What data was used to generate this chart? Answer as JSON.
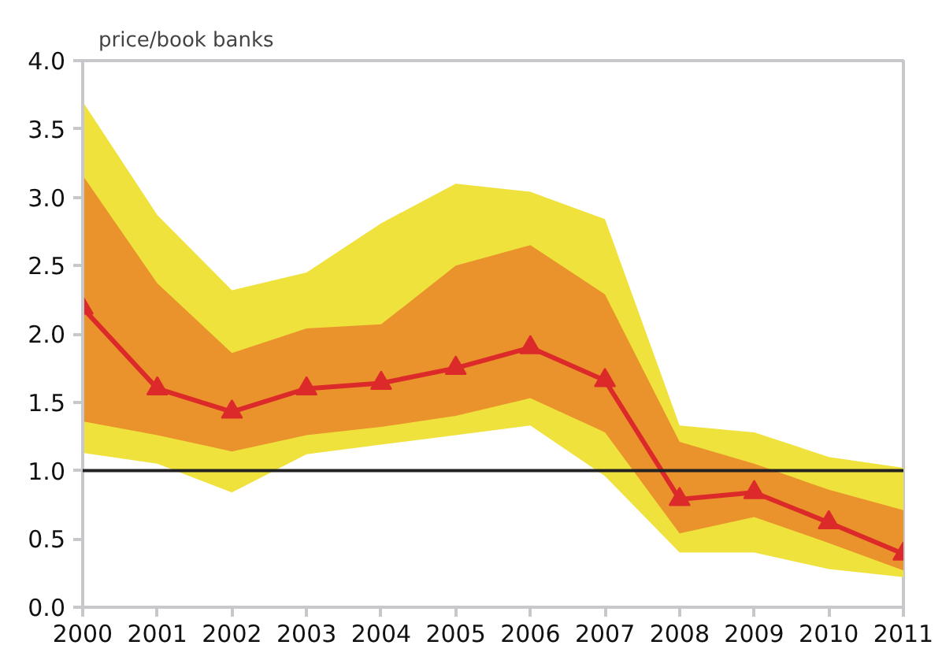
{
  "chart_data": {
    "type": "line",
    "title": "price/book banks",
    "x": [
      2000,
      2001,
      2002,
      2003,
      2004,
      2005,
      2006,
      2007,
      2008,
      2009,
      2010,
      2011
    ],
    "series": [
      {
        "color": "#f0e23c",
        "values": [
          null,
          null,
          null,
          null,
          null,
          null,
          null,
          null,
          null,
          null,
          null,
          null
        ],
        "upper": [
          3.7,
          2.87,
          2.32,
          2.45,
          2.81,
          3.1,
          3.04,
          2.84,
          1.33,
          1.28,
          1.1,
          1.02
        ],
        "lower": [
          1.13,
          1.05,
          0.84,
          1.12,
          1.19,
          1.26,
          1.33,
          0.96,
          0.4,
          0.4,
          0.28,
          0.22
        ]
      },
      {
        "color": "#ea922c",
        "values": [
          null,
          null,
          null,
          null,
          null,
          null,
          null,
          null,
          null,
          null,
          null,
          null
        ],
        "upper": [
          3.16,
          2.37,
          1.86,
          2.04,
          2.07,
          2.5,
          2.65,
          2.29,
          1.21,
          1.05,
          0.86,
          0.71
        ],
        "lower": [
          1.36,
          1.26,
          1.14,
          1.26,
          1.32,
          1.4,
          1.53,
          1.28,
          0.54,
          0.66,
          0.47,
          0.27
        ]
      },
      {
        "color": "#dc2a2a",
        "marker": "triangle",
        "values": [
          2.19,
          1.6,
          1.43,
          1.6,
          1.64,
          1.75,
          1.9,
          1.66,
          0.79,
          0.84,
          0.62,
          0.39
        ]
      }
    ],
    "xlim": [
      2000,
      2011
    ],
    "xticks": [
      2000,
      2001,
      2002,
      2003,
      2004,
      2005,
      2006,
      2007,
      2008,
      2009,
      2010,
      2011
    ],
    "ylim": [
      0,
      4
    ],
    "yticks": [
      {
        "value": 0,
        "label": "0.0"
      },
      {
        "value": 0.5,
        "label": "0.5"
      },
      {
        "value": 1,
        "label": "1.0"
      },
      {
        "value": 1.5,
        "label": "1.5"
      },
      {
        "value": 2,
        "label": "2.0"
      },
      {
        "value": 2.5,
        "label": "2.5"
      },
      {
        "value": 3,
        "label": "3.0"
      },
      {
        "value": 3.5,
        "label": "3.5"
      },
      {
        "value": 4,
        "label": "4.0"
      }
    ],
    "ref_lines": [
      {
        "axis": "y",
        "value": 1,
        "color": "#222222"
      }
    ],
    "grid": false
  }
}
